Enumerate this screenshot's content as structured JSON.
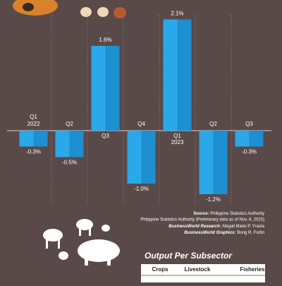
{
  "chart_data": {
    "type": "bar",
    "categories": [
      "Q1",
      "Q2",
      "Q3",
      "Q4",
      "Q1",
      "Q2",
      "Q3"
    ],
    "year_labels": [
      "2022",
      null,
      null,
      null,
      "2023",
      null,
      null
    ],
    "values": [
      -0.3,
      -0.5,
      1.6,
      -1.0,
      2.1,
      -1.2,
      -0.3
    ],
    "value_labels": [
      "-0.3%",
      "-0.5%",
      "1.6%",
      "-1.0%",
      "2.1%",
      "-1.2%",
      "-0.3%"
    ],
    "color": "#29a9ea"
  },
  "credits": {
    "source_label": "Source:",
    "source": "Philippine Statistics Authority",
    "source_note": "Philippine Statistics Authority (Preliminary data as of Nov. 8, 2023)",
    "research_label": "BusinessWorld Research:",
    "research": "Abigail Marie P. Yraola",
    "graphics_label": "BusinessWorld Graphics:",
    "graphics": "Bong R. Fortin"
  },
  "table": {
    "title": "Output Per Subsector",
    "headers": [
      "Crops",
      "Livestock",
      "Fisheries"
    ]
  }
}
